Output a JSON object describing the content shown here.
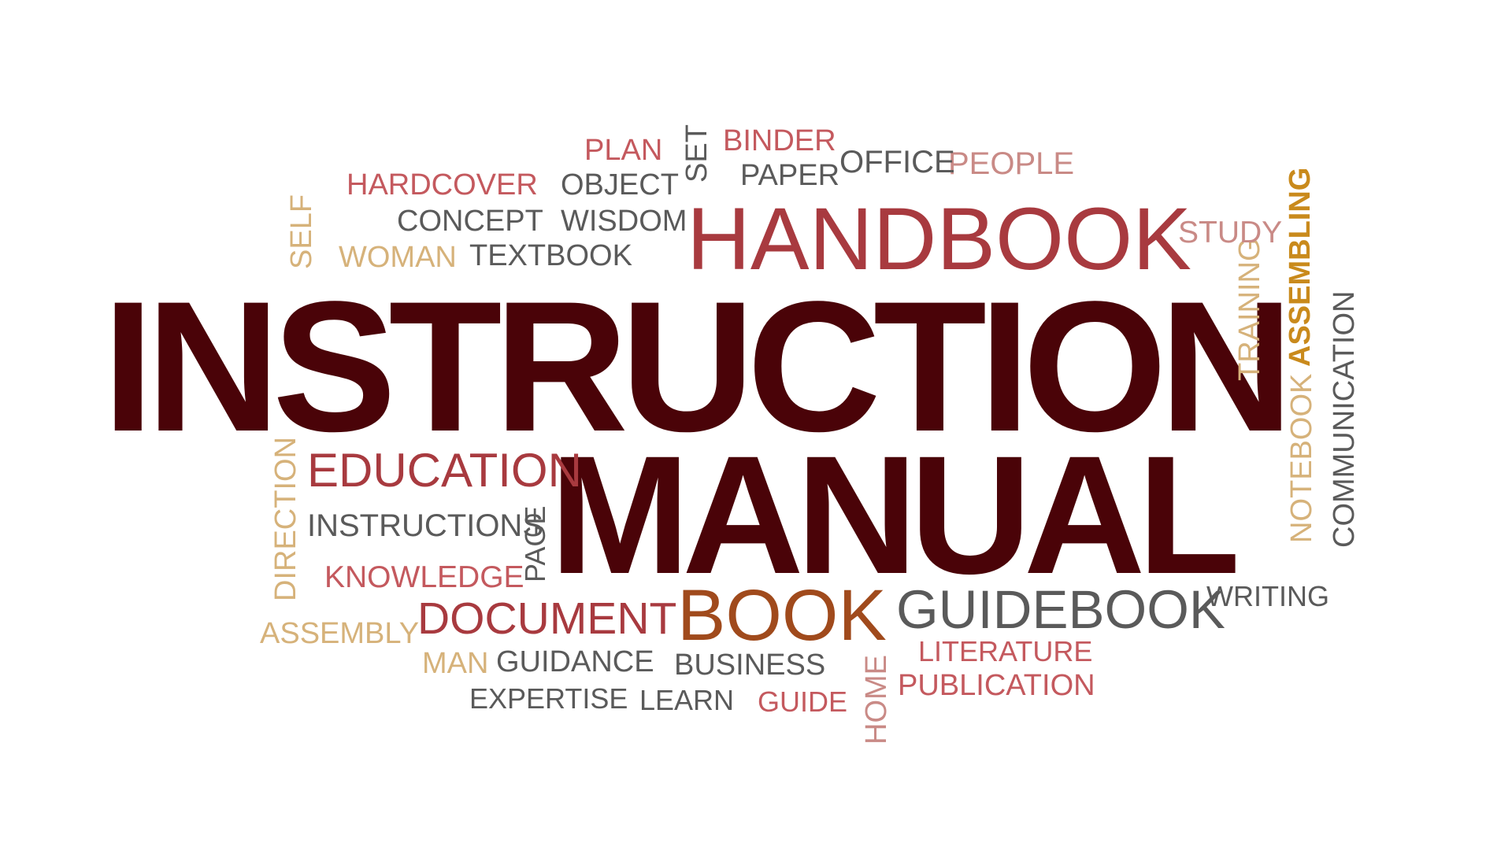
{
  "colors": {
    "dark": "#4a0308",
    "red": "#a83a3f",
    "rose": "#c4595e",
    "pink": "#c98a86",
    "gray": "#5a5a5a",
    "gold": "#d6b27a",
    "brown": "#a04a1c",
    "amber": "#c98a1c"
  },
  "words": {
    "instruction": "INSTRUCTION",
    "manual": "MANUAL",
    "handbook": "HANDBOOK",
    "book": "BOOK",
    "guidebook": "GUIDEBOOK",
    "document": "DOCUMENT",
    "education": "EDUCATION",
    "instructions": "INSTRUCTIONS",
    "knowledge": "KNOWLEDGE",
    "direction": "DIRECTION",
    "page": "PAGE",
    "assembly": "ASSEMBLY",
    "man": "MAN",
    "guidance": "GUIDANCE",
    "business": "BUSINESS",
    "expertise": "EXPERTISE",
    "learn": "LEARN",
    "guide": "GUIDE",
    "home": "HOME",
    "publication": "PUBLICATION",
    "literature": "LITERATURE",
    "writing": "WRITING",
    "notebook": "NOTEBOOK",
    "communication": "COMMUNICATION",
    "assembling": "ASSEMBLING",
    "training": "TRAINING",
    "study": "STUDY",
    "people": "PEOPLE",
    "office": "OFFICE",
    "binder": "BINDER",
    "paper": "PAPER",
    "set": "SET",
    "plan": "PLAN",
    "object": "OBJECT",
    "wisdom": "WISDOM",
    "hardcover": "HARDCOVER",
    "concept": "CONCEPT",
    "textbook": "TEXTBOOK",
    "woman": "WOMAN",
    "self": "SELF"
  }
}
